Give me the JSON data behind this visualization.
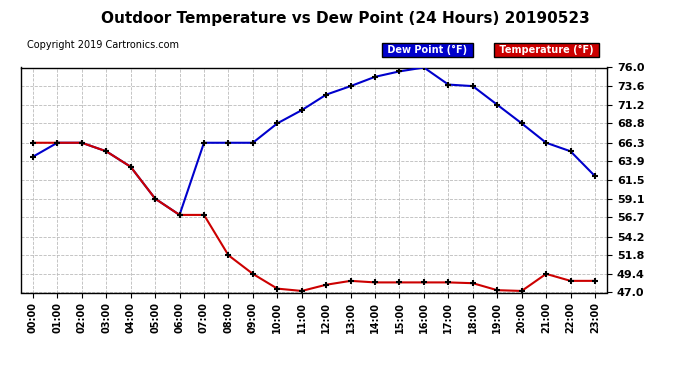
{
  "title": "Outdoor Temperature vs Dew Point (24 Hours) 20190523",
  "copyright": "Copyright 2019 Cartronics.com",
  "legend_dew": "Dew Point (°F)",
  "legend_temp": "Temperature (°F)",
  "hours": [
    0,
    1,
    2,
    3,
    4,
    5,
    6,
    7,
    8,
    9,
    10,
    11,
    12,
    13,
    14,
    15,
    16,
    17,
    18,
    19,
    20,
    21,
    22,
    23
  ],
  "temperature": [
    66.3,
    66.3,
    66.3,
    65.2,
    63.2,
    59.1,
    57.0,
    57.0,
    51.8,
    49.4,
    47.5,
    47.2,
    48.0,
    48.5,
    48.3,
    48.3,
    48.3,
    48.3,
    48.2,
    47.3,
    47.2,
    49.4,
    48.5,
    48.5
  ],
  "dew_point": [
    64.5,
    66.3,
    66.3,
    65.2,
    63.2,
    59.1,
    57.0,
    66.3,
    66.3,
    66.3,
    68.8,
    70.5,
    72.5,
    73.6,
    74.8,
    75.5,
    76.0,
    73.8,
    73.6,
    71.2,
    68.8,
    66.3,
    65.2,
    62.0
  ],
  "ylim": [
    47.0,
    76.0
  ],
  "yticks": [
    47.0,
    49.4,
    51.8,
    54.2,
    56.7,
    59.1,
    61.5,
    63.9,
    66.3,
    68.8,
    71.2,
    73.6,
    76.0
  ],
  "temp_color": "#cc0000",
  "dew_color": "#0000cc",
  "bg_color": "#ffffff",
  "grid_color": "#bbbbbb",
  "title_fontsize": 11,
  "legend_bg_dew": "#0000cc",
  "legend_bg_temp": "#cc0000"
}
